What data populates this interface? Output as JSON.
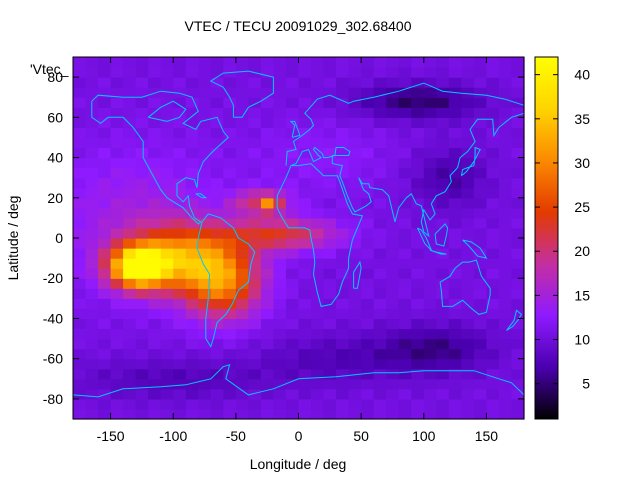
{
  "chart_data": {
    "type": "heatmap",
    "title": "VTEC / TECU 20091029_302.68400",
    "xlabel": "Longitude / deg",
    "ylabel": "Latitude / deg",
    "series_label": "'Vtec_",
    "xlim": [
      -180,
      180
    ],
    "ylim": [
      -90,
      90
    ],
    "x_ticks": [
      -150,
      -100,
      -50,
      0,
      50,
      100,
      150
    ],
    "y_ticks": [
      -80,
      -60,
      -40,
      -20,
      0,
      20,
      40,
      60,
      80
    ],
    "colorbar": {
      "min": 1,
      "max": 42,
      "ticks": [
        5,
        10,
        15,
        20,
        25,
        30,
        35,
        40
      ],
      "palette": [
        "#000000",
        "#4b00b0",
        "#8f1aff",
        "#c42fa0",
        "#e33a00",
        "#fb8a00",
        "#ffd400",
        "#ffff00"
      ]
    },
    "cell_size_deg": [
      10,
      5
    ],
    "field_description": {
      "background_tecu": 10,
      "features": [
        {
          "name": "south-pacific-peak",
          "lon": -130,
          "lat": -14,
          "peak_tecu": 40
        },
        {
          "name": "south-america-band",
          "lon": -60,
          "lat": -20,
          "peak_tecu": 30
        },
        {
          "name": "atlantic-tongue",
          "lon": 10,
          "lat": 0,
          "peak_tecu": 24
        },
        {
          "name": "north-atlantic-spot",
          "lon": -20,
          "lat": 18,
          "peak_tecu": 32
        },
        {
          "name": "north-pacific-low",
          "lon": 100,
          "lat": 65,
          "peak_tecu": 3
        },
        {
          "name": "south-indian-low",
          "lon": 110,
          "lat": -55,
          "peak_tecu": 3
        }
      ]
    },
    "coastline_color": "#00c8ff",
    "background_color": "#ffffff"
  }
}
